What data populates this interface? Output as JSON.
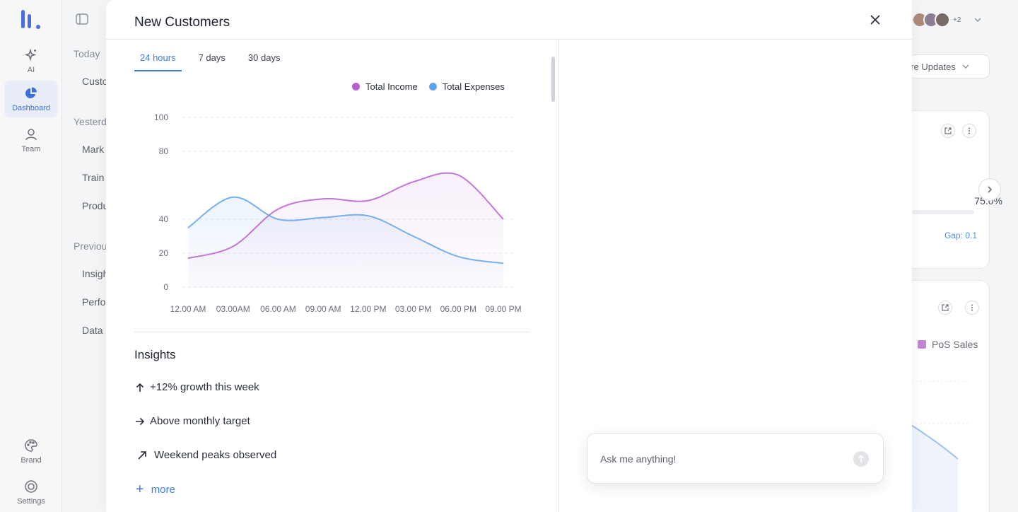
{
  "rail": {
    "items": [
      {
        "label": "AI",
        "icon": "sparkle-icon"
      },
      {
        "label": "Dashboard",
        "icon": "pie-chart-icon"
      },
      {
        "label": "Team",
        "icon": "team-icon"
      }
    ],
    "bottom": [
      {
        "label": "Brand",
        "icon": "palette-icon"
      },
      {
        "label": "Settings",
        "icon": "settings-icon"
      }
    ]
  },
  "history": {
    "today": "Today",
    "today_items": [
      "Custo"
    ],
    "yesterday": "Yesterd",
    "yesterday_items": [
      "Mark",
      "Train",
      "Produ"
    ],
    "previous": "Previou",
    "previous_items": [
      "Insigh",
      "Perfo",
      "Data"
    ]
  },
  "background": {
    "avatars_more": "+2",
    "updates_label": "ure Updates",
    "percent": "75.0%",
    "gap": "Gap: 0.1",
    "pos_sales": "PoS Sales"
  },
  "modal": {
    "title": "New Customers",
    "tabs": [
      {
        "label": "24 hours",
        "active": true
      },
      {
        "label": "7 days",
        "active": false
      },
      {
        "label": "30 days",
        "active": false
      }
    ],
    "insights_title": "Insights",
    "insights": [
      {
        "icon": "arrow-up-icon",
        "text": "+12% growth this week"
      },
      {
        "icon": "arrow-right-icon",
        "text": "Above monthly target"
      },
      {
        "icon": "arrow-up-right-icon",
        "text": "Weekend peaks observed"
      }
    ],
    "more_label": "more",
    "ask_placeholder": "Ask me anything!"
  },
  "colors": {
    "income": "#b85fd0",
    "expenses": "#5ea3ee",
    "accent": "#3b7be6"
  },
  "chart_data": {
    "type": "area",
    "title": "",
    "xlabel": "",
    "ylabel": "",
    "ylim": [
      0,
      100
    ],
    "yticks": [
      0,
      20,
      40,
      80,
      100
    ],
    "x": [
      "12.00 AM",
      "03.00AM",
      "06.00 AM",
      "09.00 AM",
      "12.00 PM",
      "03.00 PM",
      "06.00 PM",
      "09.00 PM"
    ],
    "series": [
      {
        "name": "Total Income",
        "color": "#b85fd0",
        "values": [
          17,
          24,
          46,
          52,
          51,
          62,
          66,
          40
        ]
      },
      {
        "name": "Total Expenses",
        "color": "#5ea3ee",
        "values": [
          35,
          53,
          40,
          41,
          42,
          30,
          18,
          14
        ]
      }
    ],
    "legend": "top-right",
    "grid": true
  }
}
